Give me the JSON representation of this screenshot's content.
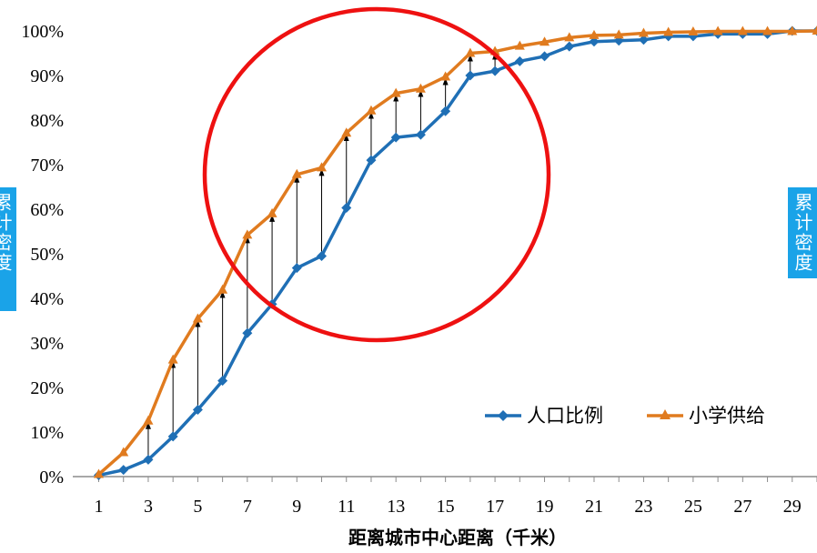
{
  "chart_data": {
    "type": "line",
    "title": "",
    "xlabel": "距离城市中心距离（千米）",
    "ylabel_left": "累计密度",
    "ylabel_right": "累计密度",
    "ylim": [
      0,
      100
    ],
    "xlim": [
      1,
      30
    ],
    "y_ticks": [
      "0%",
      "10%",
      "20%",
      "30%",
      "40%",
      "50%",
      "60%",
      "70%",
      "80%",
      "90%",
      "100%"
    ],
    "x_ticks": [
      "1",
      "3",
      "5",
      "7",
      "9",
      "11",
      "13",
      "15",
      "17",
      "19",
      "21",
      "23",
      "25",
      "27",
      "29"
    ],
    "x": [
      1,
      2,
      3,
      4,
      5,
      6,
      7,
      8,
      9,
      10,
      11,
      12,
      13,
      14,
      15,
      16,
      17,
      18,
      19,
      20,
      21,
      22,
      23,
      24,
      25,
      26,
      27,
      28,
      29,
      30
    ],
    "series": [
      {
        "name": "人口比例",
        "color": "#1f6fb5",
        "marker": "diamond",
        "values": [
          0.3,
          1.5,
          3.8,
          9,
          15,
          21.5,
          32.2,
          38.7,
          46.8,
          49.5,
          60.3,
          71,
          76.1,
          76.7,
          82,
          90,
          91,
          93.2,
          94.3,
          96.5,
          97.6,
          97.8,
          98,
          98.8,
          98.8,
          99.3,
          99.3,
          99.3,
          100,
          100
        ]
      },
      {
        "name": "小学供给",
        "color": "#e07b1f",
        "marker": "triangle",
        "values": [
          0.5,
          5.4,
          12.5,
          26.2,
          35.4,
          41.9,
          54.2,
          59,
          67.8,
          69.3,
          77.1,
          82.1,
          86,
          87,
          89.7,
          95,
          95.4,
          96.6,
          97.5,
          98.5,
          99,
          99.1,
          99.5,
          99.7,
          99.8,
          99.9,
          99.9,
          99.9,
          99.9,
          100
        ]
      }
    ],
    "difference_lines_x": [
      3,
      4,
      5,
      6,
      7,
      8,
      9,
      10,
      11,
      12,
      13,
      14,
      15,
      16,
      17
    ],
    "annotation": {
      "shape": "circle",
      "color": "#ee1111"
    },
    "legend": {
      "placement": "bottom-right"
    },
    "grid": false
  }
}
